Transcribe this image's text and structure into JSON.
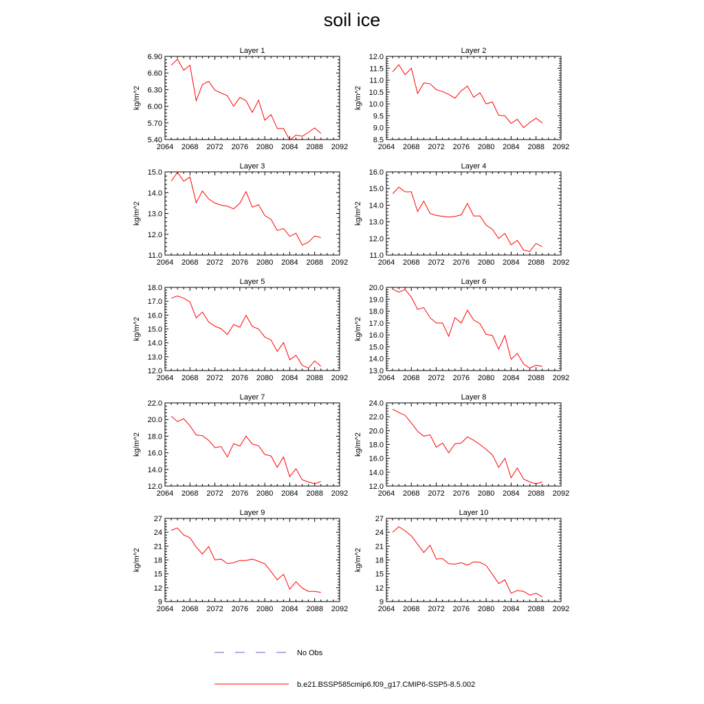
{
  "title": "soil ice",
  "legend": {
    "entries": [
      {
        "label": "No Obs",
        "color": "#6a5acd",
        "style": "dashed"
      },
      {
        "label": "b.e21.BSSP585cmip6.f09_g17.CMIP6-SSP5-8.5.002",
        "color": "#ff0000",
        "style": "solid"
      }
    ]
  },
  "chart_data": [
    {
      "type": "line",
      "title": "Layer 1",
      "xlabel": "",
      "ylabel": "kg/m^2",
      "xlim": [
        2064,
        2092
      ],
      "ylim": [
        5.4,
        6.9
      ],
      "xticks": [
        2064,
        2068,
        2072,
        2076,
        2080,
        2084,
        2088,
        2092
      ],
      "xtick_labels": [
        "2064",
        "2068",
        "2072",
        "2076",
        "2080",
        "2084",
        "2088",
        "2092"
      ],
      "yticks": [
        5.4,
        5.7,
        6.0,
        6.3,
        6.6,
        6.9
      ],
      "ytick_labels": [
        "5.40",
        "5.70",
        "6.00",
        "6.30",
        "6.60",
        "6.90"
      ],
      "series": [
        {
          "x": [
            2065,
            2066,
            2067,
            2068,
            2069,
            2070,
            2071,
            2072,
            2073,
            2074,
            2075,
            2076,
            2077,
            2078,
            2079,
            2080,
            2081,
            2082,
            2083,
            2084,
            2085,
            2086,
            2087,
            2088,
            2089
          ],
          "y": [
            6.74,
            6.85,
            6.65,
            6.74,
            6.1,
            6.39,
            6.45,
            6.29,
            6.24,
            6.19,
            6.0,
            6.16,
            6.1,
            5.89,
            6.11,
            5.75,
            5.85,
            5.6,
            5.6,
            5.39,
            5.48,
            5.46,
            5.53,
            5.61,
            5.51
          ]
        }
      ]
    },
    {
      "type": "line",
      "title": "Layer 2",
      "xlabel": "",
      "ylabel": "kg/m^2",
      "xlim": [
        2064,
        2092
      ],
      "ylim": [
        8.5,
        12.0
      ],
      "xticks": [
        2064,
        2068,
        2072,
        2076,
        2080,
        2084,
        2088,
        2092
      ],
      "xtick_labels": [
        "2064",
        "2068",
        "2072",
        "2076",
        "2080",
        "2084",
        "2088",
        "2092"
      ],
      "yticks": [
        8.5,
        9.0,
        9.5,
        10.0,
        10.5,
        11.0,
        11.5,
        12.0
      ],
      "ytick_labels": [
        "8.5",
        "9.0",
        "9.5",
        "10.0",
        "10.5",
        "11.0",
        "11.5",
        "12.0"
      ],
      "series": [
        {
          "x": [
            2065,
            2066,
            2067,
            2068,
            2069,
            2070,
            2071,
            2072,
            2073,
            2074,
            2075,
            2076,
            2077,
            2078,
            2079,
            2080,
            2081,
            2082,
            2083,
            2084,
            2085,
            2086,
            2087,
            2088,
            2089
          ],
          "y": [
            11.35,
            11.65,
            11.23,
            11.5,
            10.44,
            10.88,
            10.85,
            10.6,
            10.52,
            10.4,
            10.24,
            10.55,
            10.75,
            10.28,
            10.47,
            10.0,
            10.08,
            9.52,
            9.5,
            9.18,
            9.35,
            9.0,
            9.22,
            9.4,
            9.2
          ]
        }
      ]
    },
    {
      "type": "line",
      "title": "Layer 3",
      "xlabel": "",
      "ylabel": "kg/m^2",
      "xlim": [
        2064,
        2092
      ],
      "ylim": [
        11.0,
        15.0
      ],
      "xticks": [
        2064,
        2068,
        2072,
        2076,
        2080,
        2084,
        2088,
        2092
      ],
      "xtick_labels": [
        "2064",
        "2068",
        "2072",
        "2076",
        "2080",
        "2084",
        "2088",
        "2092"
      ],
      "yticks": [
        11.0,
        12.0,
        13.0,
        14.0,
        15.0
      ],
      "ytick_labels": [
        "11.0",
        "12.0",
        "13.0",
        "14.0",
        "15.0"
      ],
      "series": [
        {
          "x": [
            2065,
            2066,
            2067,
            2068,
            2069,
            2070,
            2071,
            2072,
            2073,
            2074,
            2075,
            2076,
            2077,
            2078,
            2079,
            2080,
            2081,
            2082,
            2083,
            2084,
            2085,
            2086,
            2087,
            2088,
            2089
          ],
          "y": [
            14.55,
            14.98,
            14.55,
            14.75,
            13.52,
            14.08,
            13.7,
            13.5,
            13.4,
            13.35,
            13.22,
            13.5,
            14.05,
            13.3,
            13.42,
            12.9,
            12.72,
            12.18,
            12.28,
            11.9,
            12.05,
            11.48,
            11.62,
            11.92,
            11.84
          ]
        }
      ]
    },
    {
      "type": "line",
      "title": "Layer 4",
      "xlabel": "",
      "ylabel": "kg/m^2",
      "xlim": [
        2064,
        2092
      ],
      "ylim": [
        11.0,
        16.0
      ],
      "xticks": [
        2064,
        2068,
        2072,
        2076,
        2080,
        2084,
        2088,
        2092
      ],
      "xtick_labels": [
        "2064",
        "2068",
        "2072",
        "2076",
        "2080",
        "2084",
        "2088",
        "2092"
      ],
      "yticks": [
        11.0,
        12.0,
        13.0,
        14.0,
        15.0,
        16.0
      ],
      "ytick_labels": [
        "11.0",
        "12.0",
        "13.0",
        "14.0",
        "15.0",
        "16.0"
      ],
      "series": [
        {
          "x": [
            2065,
            2066,
            2067,
            2068,
            2069,
            2070,
            2071,
            2072,
            2073,
            2074,
            2075,
            2076,
            2077,
            2078,
            2079,
            2080,
            2081,
            2082,
            2083,
            2084,
            2085,
            2086,
            2087,
            2088,
            2089
          ],
          "y": [
            14.68,
            15.08,
            14.8,
            14.8,
            13.62,
            14.25,
            13.5,
            13.38,
            13.33,
            13.28,
            13.32,
            13.42,
            14.1,
            13.35,
            13.35,
            12.8,
            12.55,
            12.0,
            12.3,
            11.62,
            11.88,
            11.3,
            11.22,
            11.7,
            11.5
          ]
        }
      ]
    },
    {
      "type": "line",
      "title": "Layer 5",
      "xlabel": "",
      "ylabel": "kg/m^2",
      "xlim": [
        2064,
        2092
      ],
      "ylim": [
        12.0,
        18.0
      ],
      "xticks": [
        2064,
        2068,
        2072,
        2076,
        2080,
        2084,
        2088,
        2092
      ],
      "xtick_labels": [
        "2064",
        "2068",
        "2072",
        "2076",
        "2080",
        "2084",
        "2088",
        "2092"
      ],
      "yticks": [
        12.0,
        13.0,
        14.0,
        15.0,
        16.0,
        17.0,
        18.0
      ],
      "ytick_labels": [
        "12.0",
        "13.0",
        "14.0",
        "15.0",
        "16.0",
        "17.0",
        "18.0"
      ],
      "series": [
        {
          "x": [
            2065,
            2066,
            2067,
            2068,
            2069,
            2070,
            2071,
            2072,
            2073,
            2074,
            2075,
            2076,
            2077,
            2078,
            2079,
            2080,
            2081,
            2082,
            2083,
            2084,
            2085,
            2086,
            2087,
            2088,
            2089
          ],
          "y": [
            17.22,
            17.38,
            17.22,
            16.95,
            15.8,
            16.22,
            15.5,
            15.2,
            15.02,
            14.6,
            15.32,
            15.12,
            15.98,
            15.18,
            15.0,
            14.42,
            14.2,
            13.38,
            14.02,
            12.78,
            13.1,
            12.38,
            12.18,
            12.7,
            12.3
          ]
        }
      ]
    },
    {
      "type": "line",
      "title": "Layer 6",
      "xlabel": "",
      "ylabel": "kg/m^2",
      "xlim": [
        2064,
        2092
      ],
      "ylim": [
        13.0,
        20.0
      ],
      "xticks": [
        2064,
        2068,
        2072,
        2076,
        2080,
        2084,
        2088,
        2092
      ],
      "xtick_labels": [
        "2064",
        "2068",
        "2072",
        "2076",
        "2080",
        "2084",
        "2088",
        "2092"
      ],
      "yticks": [
        13.0,
        14.0,
        15.0,
        16.0,
        17.0,
        18.0,
        19.0,
        20.0
      ],
      "ytick_labels": [
        "13.0",
        "14.0",
        "15.0",
        "16.0",
        "17.0",
        "18.0",
        "19.0",
        "20.0"
      ],
      "series": [
        {
          "x": [
            2065,
            2066,
            2067,
            2068,
            2069,
            2070,
            2071,
            2072,
            2073,
            2074,
            2075,
            2076,
            2077,
            2078,
            2079,
            2080,
            2081,
            2082,
            2083,
            2084,
            2085,
            2086,
            2087,
            2088,
            2089
          ],
          "y": [
            19.85,
            19.6,
            19.82,
            19.18,
            18.15,
            18.3,
            17.45,
            17.0,
            17.0,
            15.88,
            17.45,
            17.0,
            18.08,
            17.25,
            16.95,
            16.05,
            15.95,
            14.8,
            15.95,
            13.95,
            14.45,
            13.55,
            13.2,
            13.45,
            13.35
          ]
        }
      ]
    },
    {
      "type": "line",
      "title": "Layer 7",
      "xlabel": "",
      "ylabel": "kg/m^2",
      "xlim": [
        2064,
        2092
      ],
      "ylim": [
        12.0,
        22.0
      ],
      "xticks": [
        2064,
        2068,
        2072,
        2076,
        2080,
        2084,
        2088,
        2092
      ],
      "xtick_labels": [
        "2064",
        "2068",
        "2072",
        "2076",
        "2080",
        "2084",
        "2088",
        "2092"
      ],
      "yticks": [
        12.0,
        14.0,
        16.0,
        18.0,
        20.0,
        22.0
      ],
      "ytick_labels": [
        "12.0",
        "14.0",
        "16.0",
        "18.0",
        "20.0",
        "22.0"
      ],
      "series": [
        {
          "x": [
            2065,
            2066,
            2067,
            2068,
            2069,
            2070,
            2071,
            2072,
            2073,
            2074,
            2075,
            2076,
            2077,
            2078,
            2079,
            2080,
            2081,
            2082,
            2083,
            2084,
            2085,
            2086,
            2087,
            2088,
            2089
          ],
          "y": [
            20.4,
            19.75,
            20.1,
            19.25,
            18.15,
            18.05,
            17.5,
            16.62,
            16.75,
            15.5,
            17.1,
            16.8,
            18.0,
            17.05,
            16.85,
            15.8,
            15.62,
            14.25,
            15.5,
            13.12,
            14.1,
            12.75,
            12.5,
            12.28,
            12.55
          ]
        }
      ]
    },
    {
      "type": "line",
      "title": "Layer 8",
      "xlabel": "",
      "ylabel": "kg/m^2",
      "xlim": [
        2064,
        2092
      ],
      "ylim": [
        12.0,
        24.0
      ],
      "xticks": [
        2064,
        2068,
        2072,
        2076,
        2080,
        2084,
        2088,
        2092
      ],
      "xtick_labels": [
        "2064",
        "2068",
        "2072",
        "2076",
        "2080",
        "2084",
        "2088",
        "2092"
      ],
      "yticks": [
        12.0,
        14.0,
        16.0,
        18.0,
        20.0,
        22.0,
        24.0
      ],
      "ytick_labels": [
        "12.0",
        "14.0",
        "16.0",
        "18.0",
        "20.0",
        "22.0",
        "24.0"
      ],
      "series": [
        {
          "x": [
            2065,
            2066,
            2067,
            2068,
            2069,
            2070,
            2071,
            2072,
            2073,
            2074,
            2075,
            2076,
            2077,
            2078,
            2079,
            2080,
            2081,
            2082,
            2083,
            2084,
            2085,
            2086,
            2087,
            2088,
            2089
          ],
          "y": [
            23.1,
            22.6,
            22.2,
            21.1,
            19.9,
            19.2,
            19.4,
            17.6,
            18.2,
            16.8,
            18.1,
            18.2,
            19.1,
            18.6,
            18.0,
            17.3,
            16.5,
            14.7,
            16.0,
            13.2,
            14.6,
            13.0,
            12.6,
            12.3,
            12.6
          ]
        }
      ]
    },
    {
      "type": "line",
      "title": "Layer 9",
      "xlabel": "",
      "ylabel": "kg/m^2",
      "xlim": [
        2064,
        2092
      ],
      "ylim": [
        9,
        27
      ],
      "xticks": [
        2064,
        2068,
        2072,
        2076,
        2080,
        2084,
        2088,
        2092
      ],
      "xtick_labels": [
        "2064",
        "2068",
        "2072",
        "2076",
        "2080",
        "2084",
        "2088",
        "2092"
      ],
      "yticks": [
        9,
        12,
        15,
        18,
        21,
        24,
        27
      ],
      "ytick_labels": [
        "9",
        "12",
        "15",
        "18",
        "21",
        "24",
        "27"
      ],
      "series": [
        {
          "x": [
            2065,
            2066,
            2067,
            2068,
            2069,
            2070,
            2071,
            2072,
            2073,
            2074,
            2075,
            2076,
            2077,
            2078,
            2079,
            2080,
            2081,
            2082,
            2083,
            2084,
            2085,
            2086,
            2087,
            2088,
            2089
          ],
          "y": [
            24.4,
            24.95,
            23.4,
            22.8,
            20.8,
            19.3,
            20.9,
            18.0,
            18.2,
            17.2,
            17.4,
            17.9,
            17.9,
            18.2,
            17.7,
            17.2,
            15.5,
            13.7,
            14.9,
            11.7,
            13.3,
            11.9,
            11.2,
            11.2,
            11.0
          ]
        }
      ]
    },
    {
      "type": "line",
      "title": "Layer 10",
      "xlabel": "",
      "ylabel": "kg/m^2",
      "xlim": [
        2064,
        2092
      ],
      "ylim": [
        9,
        27
      ],
      "xticks": [
        2064,
        2068,
        2072,
        2076,
        2080,
        2084,
        2088,
        2092
      ],
      "xtick_labels": [
        "2064",
        "2068",
        "2072",
        "2076",
        "2080",
        "2084",
        "2088",
        "2092"
      ],
      "yticks": [
        9,
        12,
        15,
        18,
        21,
        24,
        27
      ],
      "ytick_labels": [
        "9",
        "12",
        "15",
        "18",
        "21",
        "24",
        "27"
      ],
      "series": [
        {
          "x": [
            2065,
            2066,
            2067,
            2068,
            2069,
            2070,
            2071,
            2072,
            2073,
            2074,
            2075,
            2076,
            2077,
            2078,
            2079,
            2080,
            2081,
            2082,
            2083,
            2084,
            2085,
            2086,
            2087,
            2088,
            2089
          ],
          "y": [
            24.0,
            25.2,
            24.3,
            23.2,
            21.4,
            19.6,
            21.2,
            18.2,
            18.3,
            17.2,
            17.1,
            17.4,
            16.9,
            17.6,
            17.5,
            16.8,
            14.9,
            12.9,
            13.7,
            10.8,
            11.4,
            11.2,
            10.4,
            10.8,
            10.0
          ]
        }
      ]
    }
  ]
}
